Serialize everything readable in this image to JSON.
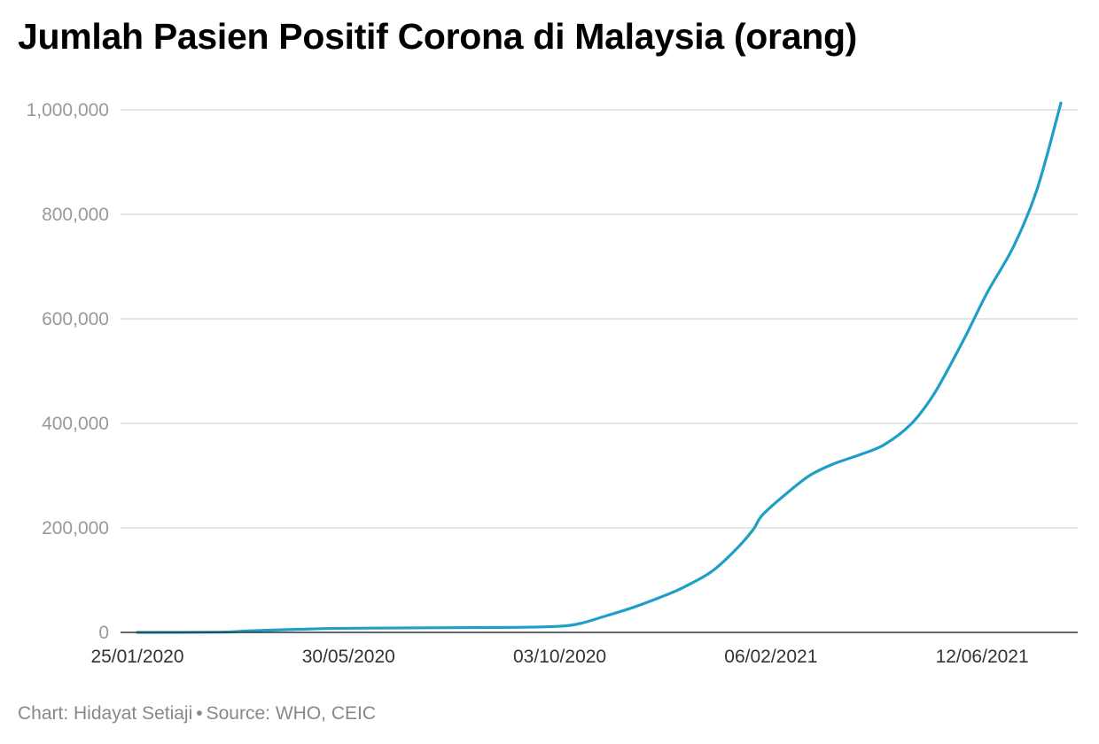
{
  "chart_data": {
    "type": "line",
    "title": "Jumlah Pasien Positif Corona di Malaysia (orang)",
    "xlabel": "",
    "ylabel": "",
    "x_start": "25/01/2020",
    "x_end": "29/07/2021",
    "x_ticks": [
      {
        "date": "25/01/2020",
        "label": "25/01/2020"
      },
      {
        "date": "30/05/2020",
        "label": "30/05/2020"
      },
      {
        "date": "03/10/2020",
        "label": "03/10/2020"
      },
      {
        "date": "06/02/2021",
        "label": "06/02/2021"
      },
      {
        "date": "12/06/2021",
        "label": "12/06/2021"
      }
    ],
    "ylim": [
      0,
      1000000
    ],
    "y_ticks": [
      {
        "value": 0,
        "label": "0"
      },
      {
        "value": 200000,
        "label": "200,000"
      },
      {
        "value": 400000,
        "label": "400,000"
      },
      {
        "value": 600000,
        "label": "600,000"
      },
      {
        "value": 800000,
        "label": "800,000"
      },
      {
        "value": 1000000,
        "label": "1,000,000"
      }
    ],
    "grid": true,
    "series": [
      {
        "name": "Jumlah Pasien Positif Corona di Malaysia",
        "color": "#1f9fc8",
        "points": [
          {
            "date": "25/01/2020",
            "value": 0
          },
          {
            "date": "15/03/2020",
            "value": 500
          },
          {
            "date": "01/04/2020",
            "value": 3000
          },
          {
            "date": "01/05/2020",
            "value": 6000
          },
          {
            "date": "01/06/2020",
            "value": 8000
          },
          {
            "date": "01/09/2020",
            "value": 9500
          },
          {
            "date": "01/10/2020",
            "value": 11500
          },
          {
            "date": "15/10/2020",
            "value": 17000
          },
          {
            "date": "01/11/2020",
            "value": 33000
          },
          {
            "date": "15/11/2020",
            "value": 47000
          },
          {
            "date": "01/12/2020",
            "value": 66000
          },
          {
            "date": "15/12/2020",
            "value": 85000
          },
          {
            "date": "01/01/2021",
            "value": 115000
          },
          {
            "date": "15/01/2021",
            "value": 155000
          },
          {
            "date": "26/01/2021",
            "value": 195000
          },
          {
            "date": "01/02/2021",
            "value": 225000
          },
          {
            "date": "15/02/2021",
            "value": 265000
          },
          {
            "date": "01/03/2021",
            "value": 300000
          },
          {
            "date": "15/03/2021",
            "value": 322000
          },
          {
            "date": "01/04/2021",
            "value": 341000
          },
          {
            "date": "15/04/2021",
            "value": 360000
          },
          {
            "date": "01/05/2021",
            "value": 400000
          },
          {
            "date": "15/05/2021",
            "value": 460000
          },
          {
            "date": "01/06/2021",
            "value": 560000
          },
          {
            "date": "15/06/2021",
            "value": 650000
          },
          {
            "date": "01/07/2021",
            "value": 740000
          },
          {
            "date": "15/07/2021",
            "value": 850000
          },
          {
            "date": "29/07/2021",
            "value": 1013000
          }
        ]
      }
    ]
  },
  "footer": {
    "chart_credit": "Chart: Hidayat Setiaji",
    "separator": "•",
    "source": "Source: WHO, CEIC"
  },
  "colors": {
    "line": "#1f9fc8",
    "grid": "#dddddd",
    "axis": "#333333",
    "tick_text": "#999999",
    "x_tick_text": "#333333"
  }
}
